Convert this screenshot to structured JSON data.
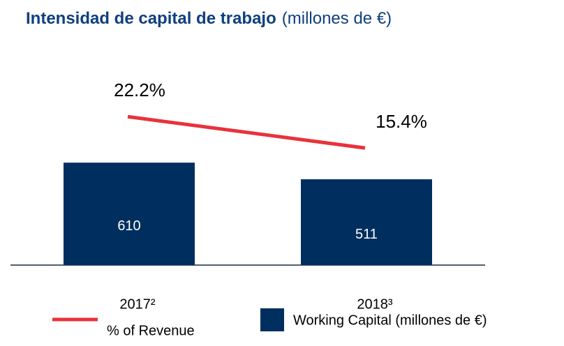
{
  "chart_data": {
    "type": "bar",
    "title": "Intensidad de capital de trabajo",
    "title_unit": "(millones de €)",
    "categories": [
      "2017²",
      "2018³"
    ],
    "series": [
      {
        "name": "Working Capital (millones de €)",
        "type": "bar",
        "color": "#002f5f",
        "values": [
          610,
          511
        ]
      },
      {
        "name": "% of Revenue",
        "type": "line",
        "axis": "y2",
        "color": "#e8323c",
        "values": [
          22.2,
          15.4
        ],
        "value_labels": [
          "22.2%",
          "15.4%"
        ]
      }
    ],
    "ylim": [
      0,
      1400
    ],
    "y2lim": [
      -10,
      41
    ],
    "legend": "bottom"
  }
}
